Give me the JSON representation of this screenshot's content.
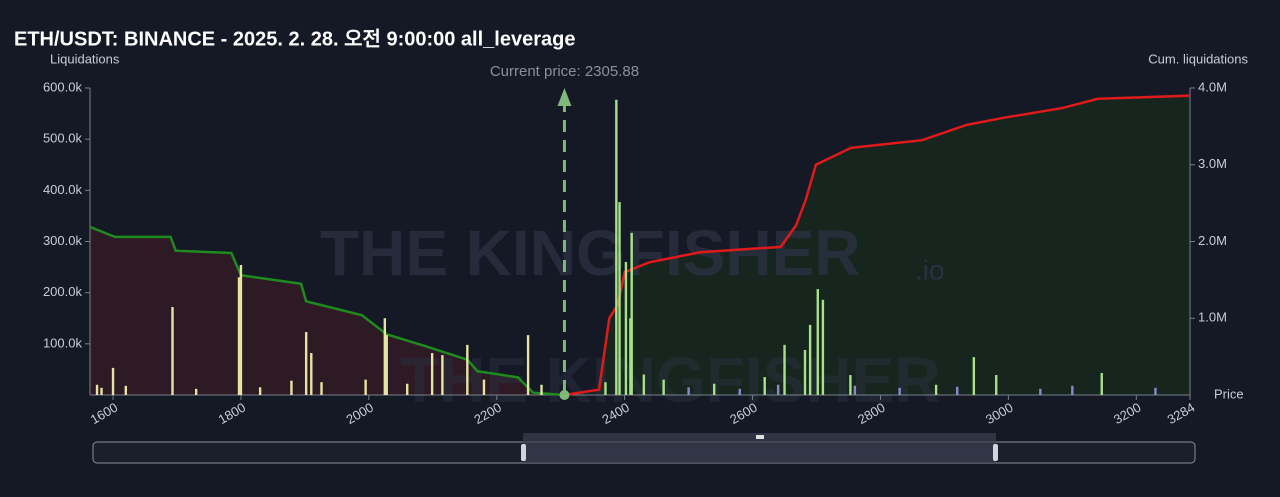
{
  "chart_data": {
    "type": "bar",
    "title": "ETH/USDT: BINANCE - 2025. 2. 28. 오전 9:00:00 all_leverage",
    "y_label": "Liquidations",
    "y2_label": "Cum. liquidations",
    "x_label": "Price",
    "annotation": "Current price: 2305.88",
    "current_price": 2305.88,
    "watermark": "THE KINGFISHER",
    "watermark_suffix": ".io",
    "xlim": [
      1564,
      3284
    ],
    "xticks": [
      1600,
      1800,
      2000,
      2200,
      2400,
      2600,
      2800,
      3000,
      3200,
      3284
    ],
    "ylim": [
      0,
      600000
    ],
    "yticks": [
      {
        "value": 100000,
        "label": "100.0k"
      },
      {
        "value": 200000,
        "label": "200.0k"
      },
      {
        "value": 300000,
        "label": "300.0k"
      },
      {
        "value": 400000,
        "label": "400.0k"
      },
      {
        "value": 500000,
        "label": "500.0k"
      },
      {
        "value": 600000,
        "label": "600.0k"
      }
    ],
    "y2lim": [
      0,
      4000000
    ],
    "y2ticks": [
      {
        "value": 1000000,
        "label": "1.0M"
      },
      {
        "value": 2000000,
        "label": "2.0M"
      },
      {
        "value": 3000000,
        "label": "3.0M"
      },
      {
        "value": 4000000,
        "label": "4.0M"
      }
    ],
    "series": [
      {
        "type": "bar",
        "color": "#e6e4a2",
        "x": [
          1575,
          1582,
          1600,
          1620,
          1693,
          1730,
          1797,
          1800,
          1830,
          1879,
          1902,
          1910,
          1926,
          1995,
          2025,
          2028,
          2060,
          2099,
          2115,
          2154,
          2180,
          2249,
          2270
        ],
        "values": [
          20000,
          14000,
          53000,
          18000,
          172000,
          12000,
          230000,
          254000,
          15000,
          28000,
          123000,
          82000,
          25000,
          30000,
          150000,
          117000,
          22000,
          82000,
          78000,
          98000,
          30000,
          117000,
          20000
        ]
      },
      {
        "type": "bar",
        "color": "#a8e08a",
        "x": [
          2370,
          2387,
          2392,
          2402,
          2409,
          2411,
          2430,
          2461,
          2540,
          2619,
          2650,
          2682,
          2690,
          2702,
          2710,
          2753,
          2887,
          2946,
          2981,
          3146
        ],
        "values": [
          25000,
          577000,
          377000,
          260000,
          150000,
          317000,
          40000,
          30000,
          22000,
          35000,
          98000,
          88000,
          137000,
          207000,
          186000,
          39000,
          20000,
          74000,
          39000,
          43000
        ]
      },
      {
        "type": "bar",
        "color": "#8a8ac8",
        "x": [
          2500,
          2580,
          2640,
          2760,
          2830,
          2920,
          3050,
          3100,
          3230
        ],
        "values": [
          15000,
          12000,
          20000,
          18000,
          14000,
          16000,
          12000,
          18000,
          14000
        ]
      },
      {
        "type": "line",
        "axis": "y2",
        "color": "#1f8a1f",
        "fill": "#2e1a24",
        "x": [
          1564,
          1603,
          1690,
          1698,
          1785,
          1800,
          1894,
          1902,
          1989,
          2028,
          2083,
          2154,
          2170,
          2233,
          2257,
          2305.88
        ],
        "values": [
          2190000,
          2060000,
          2060000,
          1880000,
          1850000,
          1560000,
          1450000,
          1220000,
          1040000,
          790000,
          650000,
          460000,
          310000,
          230000,
          30000,
          0
        ]
      },
      {
        "type": "line",
        "axis": "y2",
        "color": "#e01a1a",
        "fill": "#16261e",
        "x": [
          2305.88,
          2360,
          2376,
          2389,
          2400,
          2439,
          2518,
          2644,
          2668,
          2683,
          2699,
          2754,
          2865,
          2935,
          2991,
          3085,
          3140,
          3284
        ],
        "values": [
          0,
          70000,
          1000000,
          1170000,
          1600000,
          1730000,
          1860000,
          1930000,
          2210000,
          2540000,
          3000000,
          3220000,
          3320000,
          3520000,
          3610000,
          3740000,
          3860000,
          3900000
        ]
      }
    ]
  }
}
